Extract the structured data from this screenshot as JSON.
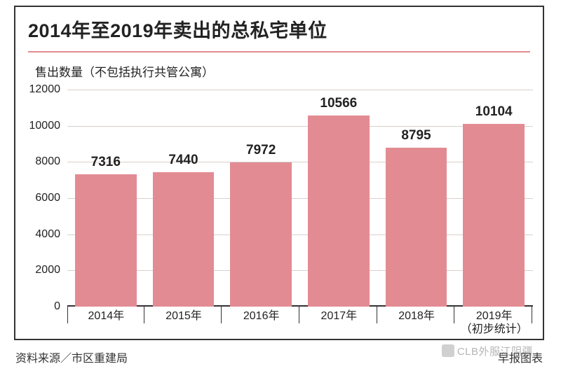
{
  "title": "2014年至2019年卖出的总私宅单位",
  "subtitle": "售出数量（不包括执行共管公寓）",
  "chart": {
    "type": "bar",
    "ylim": [
      0,
      12000
    ],
    "ytick_step": 2000,
    "yticks": [
      0,
      2000,
      4000,
      6000,
      8000,
      10000,
      12000
    ],
    "categories": [
      "2014年",
      "2015年",
      "2016年",
      "2017年",
      "2018年",
      "2019年\n（初步统计）"
    ],
    "values": [
      7316,
      7440,
      7972,
      10566,
      8795,
      10104
    ],
    "bar_color": "#e38b93",
    "grid_color": "#d9d0cc",
    "axis_color": "#333333",
    "background_color": "#ffffff",
    "underline_color": "#e38b93",
    "title_fontsize": 27,
    "label_fontsize": 16,
    "value_fontsize": 19,
    "bar_width_ratio": 0.8
  },
  "footer": {
    "source": "资料来源／市区重建局",
    "credit": "早报图表"
  },
  "watermark": "CLB外服江阴疆"
}
